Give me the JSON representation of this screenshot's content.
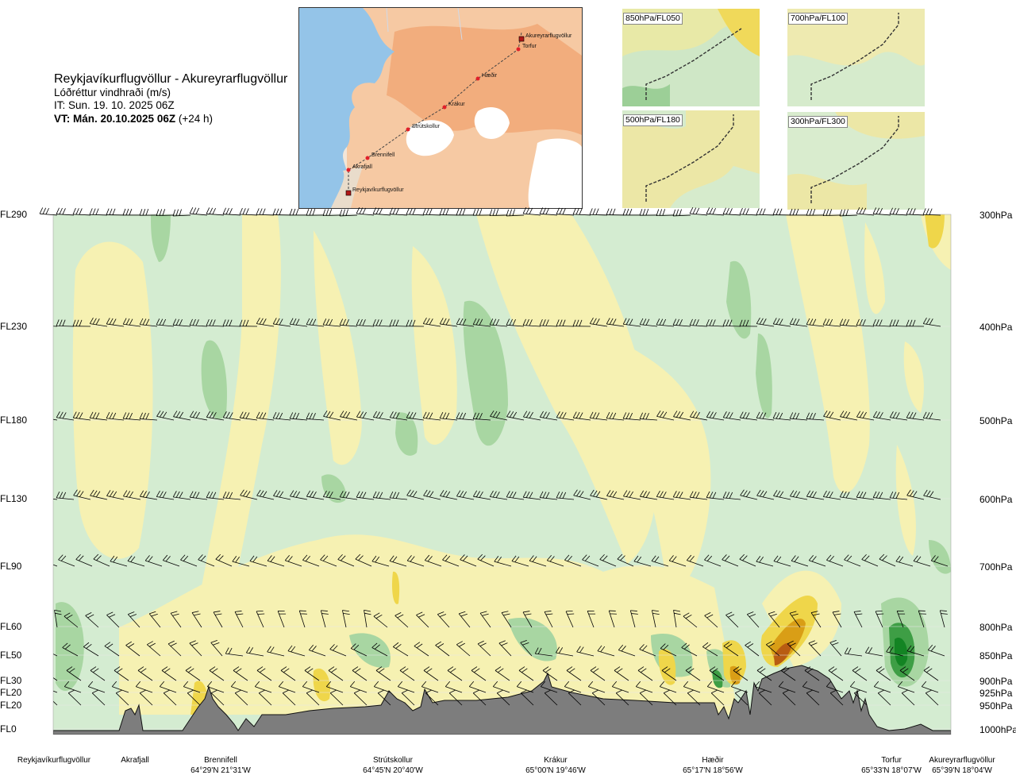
{
  "header": {
    "title": "Reykjavíkurflugvöllur - Akureyrarflugvöllur",
    "subtitle": "Lóðréttur vindhraði (m/s)",
    "issue_time": "IT: Sun. 19. 10. 2025 06Z",
    "valid_time_bold": "VT: Mán. 20.10.2025 06Z",
    "valid_time_offset": "(+24 h)"
  },
  "map": {
    "points": [
      {
        "name": "Akureyrarflugvöllur",
        "kind": "airport"
      },
      {
        "name": "Torfur",
        "kind": "waypoint"
      },
      {
        "name": "Hæðir",
        "kind": "waypoint"
      },
      {
        "name": "Krákur",
        "kind": "waypoint"
      },
      {
        "name": "Strútskollur",
        "kind": "waypoint"
      },
      {
        "name": "Brennifell",
        "kind": "waypoint"
      },
      {
        "name": "Akrafjall",
        "kind": "waypoint"
      },
      {
        "name": "Reykjavíkurflugvöllur",
        "kind": "airport"
      }
    ],
    "colors": {
      "sea": "#8fc1e6",
      "land": "#f2b58a",
      "glacier": "#ffffff",
      "route": "#444444",
      "marker": "#e0202a"
    }
  },
  "insets": [
    {
      "label": "850hPa/FL050"
    },
    {
      "label": "700hPa/FL100"
    },
    {
      "label": "500hPa/FL180"
    },
    {
      "label": "300hPa/FL300"
    }
  ],
  "chart_data": {
    "type": "heatmap",
    "title": "Reykjavíkurflugvöllur - Akureyrarflugvöllur",
    "variable": "Lóðréttur vindhraði (m/s)",
    "x_axis": "distance along route",
    "y_axis": "pressure level",
    "flight_levels": [
      "FL290",
      "FL230",
      "FL180",
      "FL130",
      "FL90",
      "FL60",
      "FL50",
      "FL30",
      "FL20",
      "FL20",
      "FL0"
    ],
    "pressure_levels": [
      "300hPa",
      "400hPa",
      "500hPa",
      "600hPa",
      "700hPa",
      "800hPa",
      "850hPa",
      "900hPa",
      "925hPa",
      "950hPa",
      "1000hPa"
    ],
    "pressure_values": [
      300,
      400,
      500,
      600,
      700,
      800,
      850,
      900,
      925,
      950,
      1000
    ],
    "waypoints": [
      {
        "name": "Reykjavíkurflugvöllur",
        "coord": "",
        "pos": 0.0
      },
      {
        "name": "Akrafjall",
        "coord": "",
        "pos": 0.09
      },
      {
        "name": "Brennifell",
        "coord": "64°29'N 21°31'W",
        "pos": 0.185
      },
      {
        "name": "Strútskollur",
        "coord": "64°45'N 20°40'W",
        "pos": 0.378
      },
      {
        "name": "Krákur",
        "coord": "65°00'N 19°46'W",
        "pos": 0.572
      },
      {
        "name": "Hæðir",
        "coord": "65°17'N 18°56'W",
        "pos": 0.77
      },
      {
        "name": "Torfur",
        "coord": "65°33'N 18°07'W",
        "pos": 0.95
      },
      {
        "name": "Akureyrarflugvöllur",
        "coord": "65°39'N 18°04'W",
        "pos": 1.0
      }
    ],
    "colors": {
      "strong_down": "#1a8a25",
      "down": "#6fba75",
      "weak_down": "#a9d7a3",
      "slight_down": "#d2ecd0",
      "neutral": "#fcfde8",
      "slight_up": "#f5efac",
      "up": "#efd64a",
      "strong_up": "#d99e16",
      "very_strong_up": "#b85c12",
      "terrain": "#7d7d7d"
    }
  }
}
